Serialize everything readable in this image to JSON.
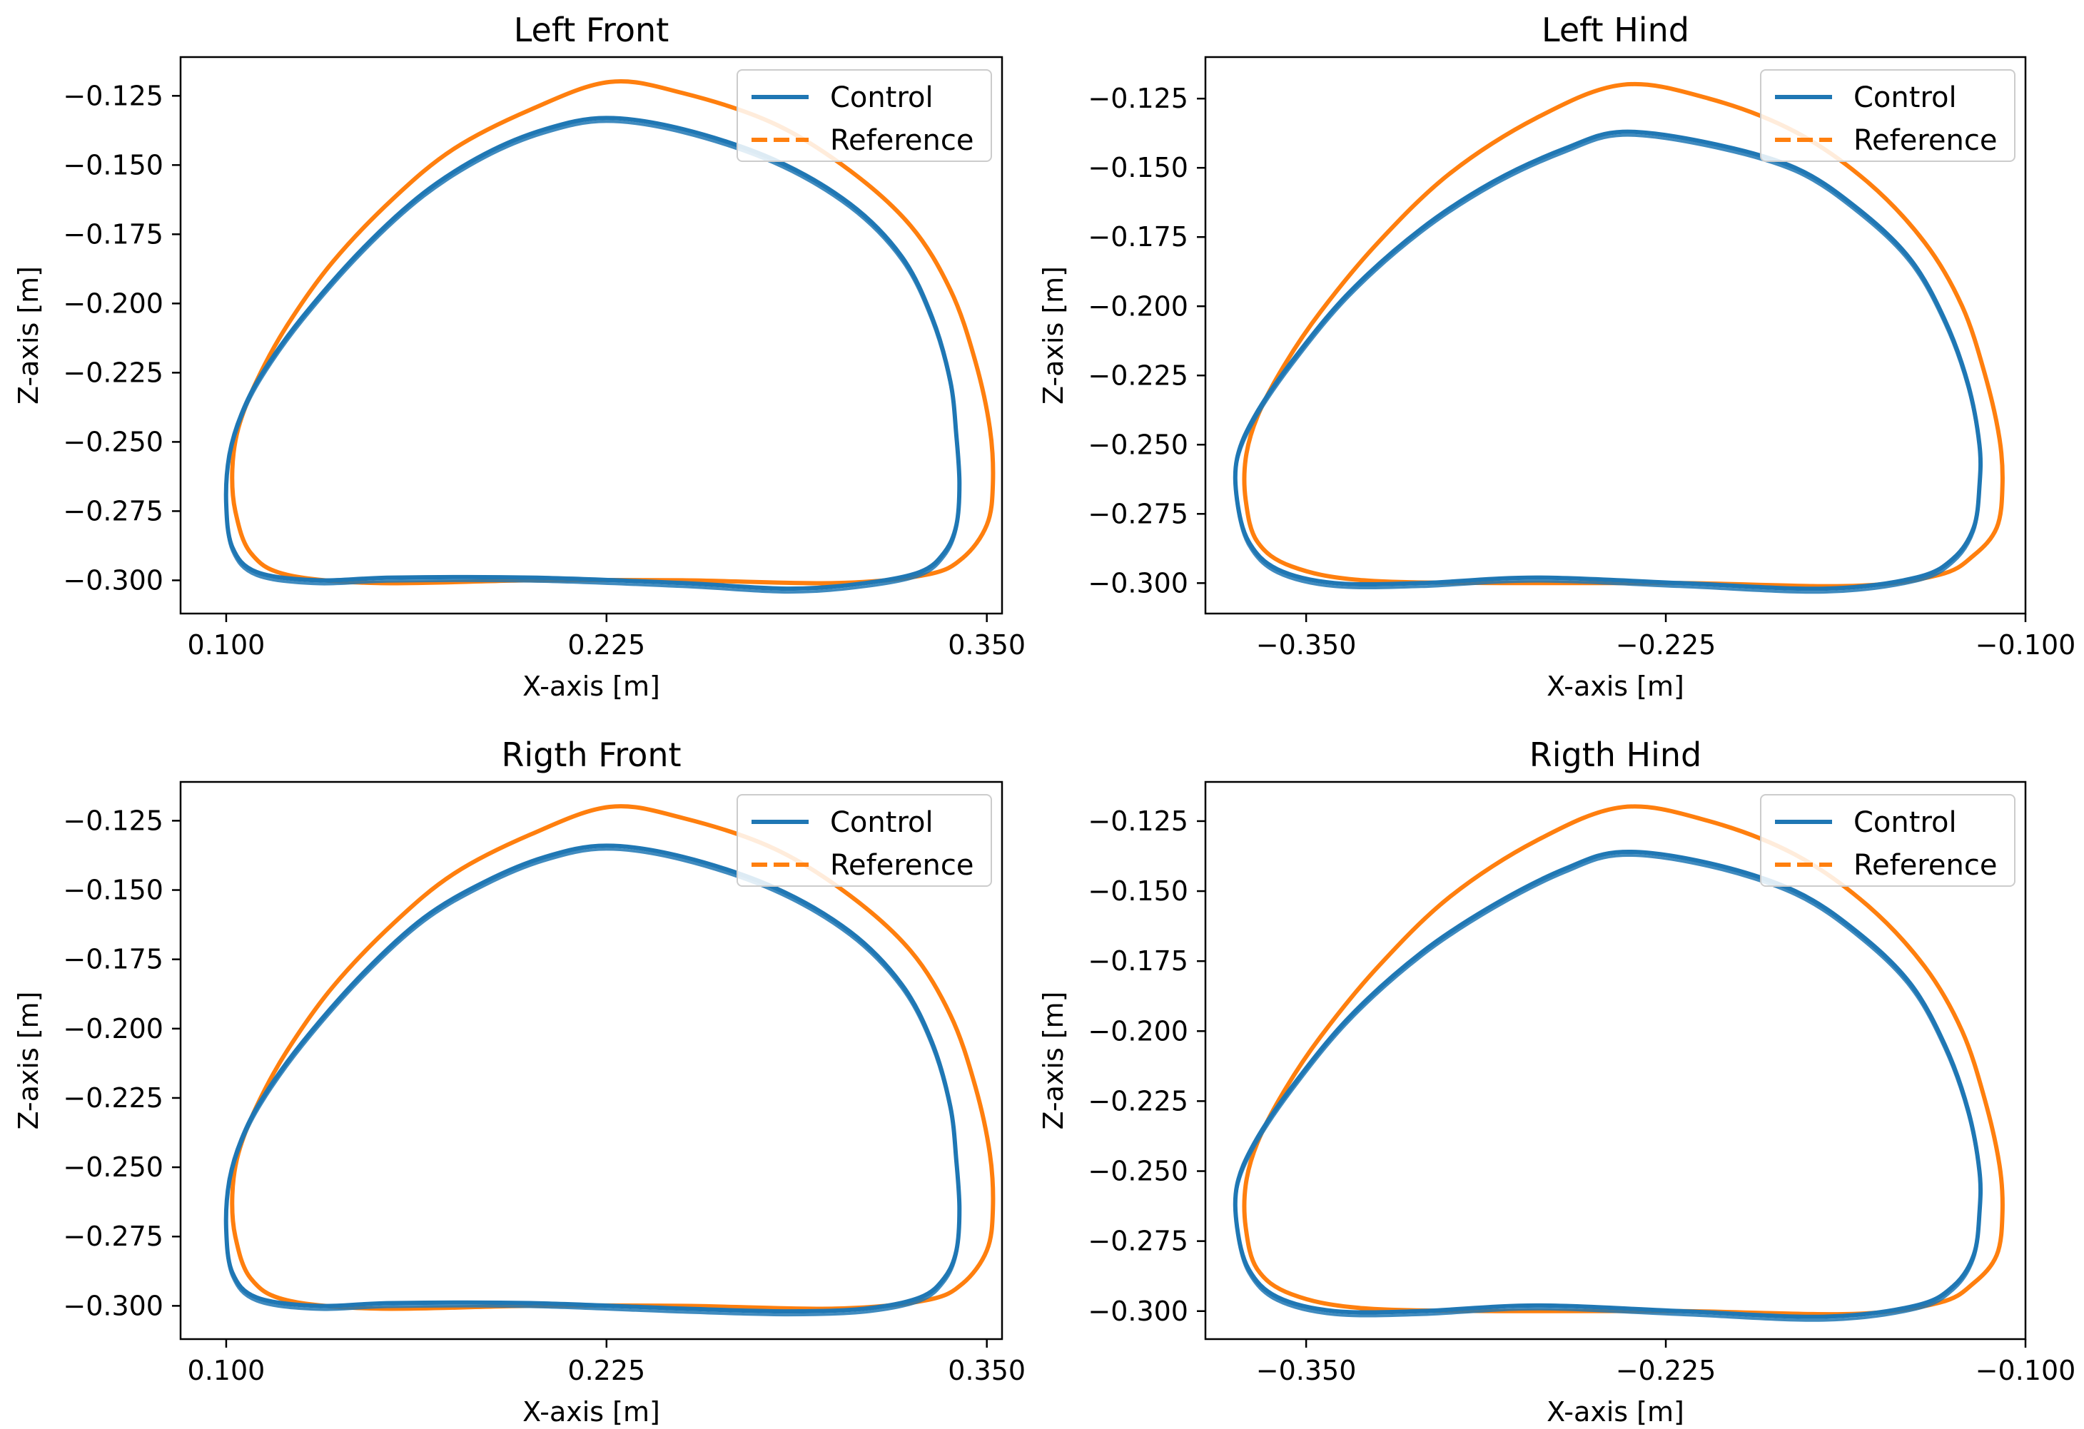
{
  "figure": {
    "colors": {
      "control": "#1f77b4",
      "reference": "#ff7f0e",
      "frame": "#000000",
      "legend_frame": "#cccccc"
    }
  },
  "chart_data": [
    {
      "type": "line",
      "title": "Left Front",
      "xlabel": "X-axis [m]",
      "ylabel": "Z-axis [m]",
      "xlim": [
        0.085,
        0.355
      ],
      "ylim": [
        -0.312,
        -0.111
      ],
      "xticks": [
        0.1,
        0.225,
        0.35
      ],
      "xtick_labels": [
        "0.100",
        "0.225",
        "0.350"
      ],
      "yticks": [
        -0.125,
        -0.15,
        -0.175,
        -0.2,
        -0.225,
        -0.25,
        -0.275,
        -0.3
      ],
      "ytick_labels": [
        "−0.125",
        "−0.150",
        "−0.175",
        "−0.200",
        "−0.225",
        "−0.250",
        "−0.275",
        "−0.300"
      ],
      "legend": {
        "placement": "upper right",
        "entries": [
          "Control",
          "Reference"
        ]
      },
      "series": [
        {
          "name": "Reference",
          "style": "dashed",
          "x": [
            0.226,
            0.25,
            0.28,
            0.305,
            0.325,
            0.338,
            0.346,
            0.351,
            0.352,
            0.35,
            0.342,
            0.33,
            0.3,
            0.25,
            0.2,
            0.15,
            0.12,
            0.108,
            0.103,
            0.102,
            0.104,
            0.11,
            0.12,
            0.135,
            0.155,
            0.175,
            0.2,
            0.226
          ],
          "y": [
            -0.12,
            -0.124,
            -0.135,
            -0.152,
            -0.172,
            -0.195,
            -0.22,
            -0.245,
            -0.265,
            -0.28,
            -0.292,
            -0.298,
            -0.301,
            -0.3,
            -0.3,
            -0.301,
            -0.298,
            -0.29,
            -0.275,
            -0.26,
            -0.245,
            -0.228,
            -0.208,
            -0.185,
            -0.162,
            -0.144,
            -0.13,
            -0.12
          ]
        },
        {
          "name": "Control",
          "style": "solid",
          "x": [
            0.225,
            0.25,
            0.28,
            0.305,
            0.322,
            0.332,
            0.338,
            0.34,
            0.341,
            0.34,
            0.336,
            0.328,
            0.31,
            0.285,
            0.25,
            0.2,
            0.155,
            0.13,
            0.11,
            0.102,
            0.1,
            0.101,
            0.105,
            0.112,
            0.125,
            0.145,
            0.165,
            0.185,
            0.205,
            0.225
          ],
          "y": [
            -0.133,
            -0.137,
            -0.148,
            -0.164,
            -0.183,
            -0.205,
            -0.228,
            -0.248,
            -0.265,
            -0.28,
            -0.29,
            -0.297,
            -0.301,
            -0.303,
            -0.301,
            -0.299,
            -0.299,
            -0.3,
            -0.297,
            -0.288,
            -0.272,
            -0.255,
            -0.24,
            -0.225,
            -0.205,
            -0.18,
            -0.16,
            -0.146,
            -0.137,
            -0.133
          ]
        }
      ]
    },
    {
      "type": "line",
      "title": "Left Hind",
      "xlabel": "X-axis [m]",
      "ylabel": "Z-axis [m]",
      "xlim": [
        -0.385,
        -0.1
      ],
      "ylim": [
        -0.311,
        -0.11
      ],
      "xticks": [
        -0.35,
        -0.225,
        -0.1
      ],
      "xtick_labels": [
        "−0.350",
        "−0.225",
        "−0.100"
      ],
      "yticks": [
        -0.125,
        -0.15,
        -0.175,
        -0.2,
        -0.225,
        -0.25,
        -0.275,
        -0.3
      ],
      "ytick_labels": [
        "−0.125",
        "−0.150",
        "−0.175",
        "−0.200",
        "−0.225",
        "−0.250",
        "−0.275",
        "−0.300"
      ],
      "legend": {
        "placement": "upper right",
        "entries": [
          "Control",
          "Reference"
        ]
      },
      "series": [
        {
          "name": "Reference",
          "style": "dashed",
          "x": [
            -0.24,
            -0.21,
            -0.18,
            -0.155,
            -0.135,
            -0.122,
            -0.114,
            -0.109,
            -0.108,
            -0.11,
            -0.118,
            -0.13,
            -0.16,
            -0.22,
            -0.28,
            -0.33,
            -0.355,
            -0.367,
            -0.371,
            -0.371,
            -0.367,
            -0.358,
            -0.345,
            -0.325,
            -0.3,
            -0.27,
            -0.24
          ],
          "y": [
            -0.12,
            -0.125,
            -0.137,
            -0.155,
            -0.177,
            -0.2,
            -0.225,
            -0.248,
            -0.265,
            -0.28,
            -0.29,
            -0.297,
            -0.301,
            -0.3,
            -0.3,
            -0.299,
            -0.294,
            -0.285,
            -0.27,
            -0.255,
            -0.24,
            -0.222,
            -0.202,
            -0.177,
            -0.152,
            -0.132,
            -0.12
          ]
        },
        {
          "name": "Control",
          "style": "solid",
          "x": [
            -0.24,
            -0.21,
            -0.18,
            -0.158,
            -0.14,
            -0.128,
            -0.12,
            -0.116,
            -0.116,
            -0.118,
            -0.125,
            -0.138,
            -0.17,
            -0.22,
            -0.27,
            -0.31,
            -0.34,
            -0.36,
            -0.37,
            -0.374,
            -0.374,
            -0.368,
            -0.355,
            -0.335,
            -0.31,
            -0.285,
            -0.26,
            -0.24
          ],
          "y": [
            -0.137,
            -0.141,
            -0.15,
            -0.165,
            -0.183,
            -0.205,
            -0.228,
            -0.25,
            -0.265,
            -0.28,
            -0.291,
            -0.298,
            -0.302,
            -0.3,
            -0.298,
            -0.3,
            -0.3,
            -0.295,
            -0.285,
            -0.27,
            -0.255,
            -0.24,
            -0.22,
            -0.195,
            -0.172,
            -0.155,
            -0.143,
            -0.137
          ]
        }
      ]
    },
    {
      "type": "line",
      "title": "Rigth Front",
      "xlabel": "X-axis [m]",
      "ylabel": "Z-axis [m]",
      "xlim": [
        0.085,
        0.355
      ],
      "ylim": [
        -0.312,
        -0.111
      ],
      "xticks": [
        0.1,
        0.225,
        0.35
      ],
      "xtick_labels": [
        "0.100",
        "0.225",
        "0.350"
      ],
      "yticks": [
        -0.125,
        -0.15,
        -0.175,
        -0.2,
        -0.225,
        -0.25,
        -0.275,
        -0.3
      ],
      "ytick_labels": [
        "−0.125",
        "−0.150",
        "−0.175",
        "−0.200",
        "−0.225",
        "−0.250",
        "−0.275",
        "−0.300"
      ],
      "legend": {
        "placement": "upper right",
        "entries": [
          "Control",
          "Reference"
        ]
      },
      "series": [
        {
          "name": "Reference",
          "style": "dashed",
          "x": [
            0.226,
            0.25,
            0.28,
            0.305,
            0.325,
            0.338,
            0.346,
            0.351,
            0.352,
            0.35,
            0.342,
            0.33,
            0.3,
            0.25,
            0.2,
            0.15,
            0.12,
            0.108,
            0.103,
            0.102,
            0.104,
            0.11,
            0.12,
            0.135,
            0.155,
            0.175,
            0.2,
            0.226
          ],
          "y": [
            -0.12,
            -0.124,
            -0.135,
            -0.152,
            -0.172,
            -0.195,
            -0.22,
            -0.245,
            -0.265,
            -0.28,
            -0.292,
            -0.298,
            -0.301,
            -0.3,
            -0.3,
            -0.301,
            -0.298,
            -0.29,
            -0.275,
            -0.26,
            -0.245,
            -0.228,
            -0.208,
            -0.185,
            -0.162,
            -0.144,
            -0.13,
            -0.12
          ]
        },
        {
          "name": "Control",
          "style": "solid",
          "x": [
            0.225,
            0.25,
            0.28,
            0.305,
            0.322,
            0.332,
            0.338,
            0.34,
            0.341,
            0.34,
            0.336,
            0.328,
            0.31,
            0.285,
            0.25,
            0.2,
            0.155,
            0.13,
            0.11,
            0.102,
            0.1,
            0.101,
            0.105,
            0.112,
            0.125,
            0.145,
            0.165,
            0.185,
            0.205,
            0.225
          ],
          "y": [
            -0.134,
            -0.138,
            -0.149,
            -0.165,
            -0.184,
            -0.205,
            -0.228,
            -0.248,
            -0.265,
            -0.28,
            -0.29,
            -0.297,
            -0.301,
            -0.302,
            -0.301,
            -0.299,
            -0.299,
            -0.3,
            -0.297,
            -0.288,
            -0.272,
            -0.255,
            -0.24,
            -0.225,
            -0.205,
            -0.18,
            -0.16,
            -0.147,
            -0.138,
            -0.134
          ]
        }
      ]
    },
    {
      "type": "line",
      "title": "Rigth Hind",
      "xlabel": "X-axis [m]",
      "ylabel": "Z-axis [m]",
      "xlim": [
        -0.385,
        -0.1
      ],
      "ylim": [
        -0.31,
        -0.111
      ],
      "xticks": [
        -0.35,
        -0.225,
        -0.1
      ],
      "xtick_labels": [
        "−0.350",
        "−0.225",
        "−0.100"
      ],
      "yticks": [
        -0.125,
        -0.15,
        -0.175,
        -0.2,
        -0.225,
        -0.25,
        -0.275,
        -0.3
      ],
      "ytick_labels": [
        "−0.125",
        "−0.150",
        "−0.175",
        "−0.200",
        "−0.225",
        "−0.250",
        "−0.275",
        "−0.300"
      ],
      "legend": {
        "placement": "upper right",
        "entries": [
          "Control",
          "Reference"
        ]
      },
      "series": [
        {
          "name": "Reference",
          "style": "dashed",
          "x": [
            -0.24,
            -0.21,
            -0.18,
            -0.155,
            -0.135,
            -0.122,
            -0.114,
            -0.109,
            -0.108,
            -0.11,
            -0.118,
            -0.13,
            -0.16,
            -0.22,
            -0.28,
            -0.33,
            -0.355,
            -0.367,
            -0.371,
            -0.371,
            -0.367,
            -0.358,
            -0.345,
            -0.325,
            -0.3,
            -0.27,
            -0.24
          ],
          "y": [
            -0.12,
            -0.125,
            -0.137,
            -0.155,
            -0.177,
            -0.2,
            -0.225,
            -0.248,
            -0.265,
            -0.28,
            -0.29,
            -0.297,
            -0.301,
            -0.3,
            -0.3,
            -0.299,
            -0.294,
            -0.285,
            -0.27,
            -0.255,
            -0.24,
            -0.222,
            -0.202,
            -0.177,
            -0.152,
            -0.132,
            -0.12
          ]
        },
        {
          "name": "Control",
          "style": "solid",
          "x": [
            -0.24,
            -0.21,
            -0.18,
            -0.158,
            -0.14,
            -0.128,
            -0.12,
            -0.116,
            -0.116,
            -0.118,
            -0.125,
            -0.138,
            -0.17,
            -0.22,
            -0.27,
            -0.31,
            -0.34,
            -0.36,
            -0.37,
            -0.374,
            -0.374,
            -0.368,
            -0.355,
            -0.335,
            -0.31,
            -0.285,
            -0.26,
            -0.24
          ],
          "y": [
            -0.136,
            -0.14,
            -0.15,
            -0.165,
            -0.183,
            -0.205,
            -0.228,
            -0.25,
            -0.265,
            -0.28,
            -0.291,
            -0.298,
            -0.302,
            -0.3,
            -0.298,
            -0.3,
            -0.3,
            -0.295,
            -0.285,
            -0.27,
            -0.255,
            -0.24,
            -0.22,
            -0.195,
            -0.172,
            -0.155,
            -0.142,
            -0.136
          ]
        }
      ]
    }
  ]
}
